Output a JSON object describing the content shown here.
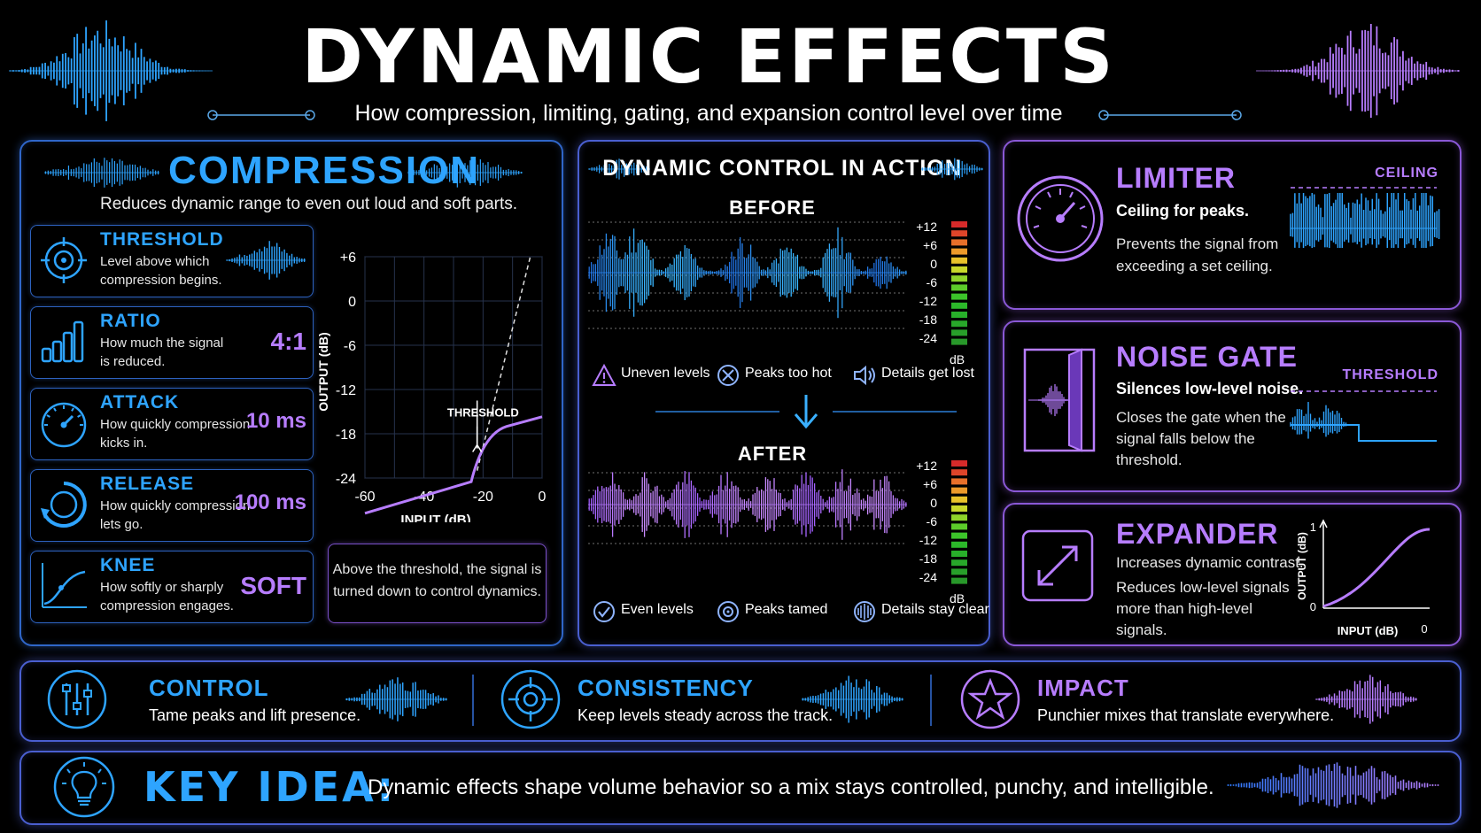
{
  "header": {
    "title": "DYNAMIC EFFECTS",
    "subtitle": "How compression, limiting, gating, and expansion control level over time"
  },
  "compression": {
    "title": "COMPRESSION",
    "description": "Reduces dynamic range to even out loud and soft parts.",
    "params": [
      {
        "name": "THRESHOLD",
        "desc1": "Level above which",
        "desc2": "compression begins.",
        "value": "",
        "icon": "target-icon"
      },
      {
        "name": "RATIO",
        "desc1": "How much the signal",
        "desc2": "is reduced.",
        "value": "4:1",
        "icon": "bars-icon"
      },
      {
        "name": "ATTACK",
        "desc1": "How quickly compression",
        "desc2": "kicks in.",
        "value": "10 ms",
        "icon": "gauge-icon"
      },
      {
        "name": "RELEASE",
        "desc1": "How quickly compression",
        "desc2": "lets go.",
        "value": "100 ms",
        "icon": "release-dial-icon"
      },
      {
        "name": "KNEE",
        "desc1": "How softly or sharply",
        "desc2": "compression engages.",
        "value": "SOFT",
        "icon": "knee-curve-icon"
      }
    ],
    "graph": {
      "y_ticks": [
        "+6",
        "0",
        "-6",
        "-12",
        "-18",
        "-24"
      ],
      "x_ticks": [
        "-60",
        "-40",
        "-20",
        "0"
      ],
      "ylabel": "OUTPUT (dB)",
      "xlabel": "INPUT (dB)",
      "annotation": "THRESHOLD"
    },
    "note_line1": "Above the threshold, the signal is",
    "note_line2": "turned down to control dynamics."
  },
  "action": {
    "title": "DYNAMIC CONTROL IN ACTION",
    "before_label": "BEFORE",
    "after_label": "AFTER",
    "meter_ticks": [
      "+12",
      "+6",
      "0",
      "-6",
      "-12",
      "-18",
      "-24"
    ],
    "meter_unit": "dB",
    "before_notes": [
      "Uneven levels",
      "Peaks too hot",
      "Details get lost"
    ],
    "after_notes": [
      "Even levels",
      "Peaks tamed",
      "Details stay clear"
    ]
  },
  "limiter": {
    "title": "LIMITER",
    "subtitle": "Ceiling for peaks.",
    "desc1": "Prevents the signal from",
    "desc2": "exceeding a set ceiling.",
    "graph_label": "CEILING"
  },
  "gate": {
    "title": "NOISE GATE",
    "subtitle": "Silences low-level noise.",
    "desc1": "Closes the gate when the",
    "desc2": "signal falls below the",
    "desc3": "threshold.",
    "graph_label": "THRESHOLD"
  },
  "expander": {
    "title": "EXPANDER",
    "subtitle": "Increases dynamic contrast.",
    "desc1": "Reduces low-level signals",
    "desc2": "more than high-level",
    "desc3": "signals.",
    "graph": {
      "ylabel": "OUTPUT (dB)",
      "xlabel": "INPUT (dB)",
      "y_top": "1",
      "y_bottom": "0",
      "x_right": "0"
    }
  },
  "benefits": [
    {
      "title": "CONTROL",
      "desc": "Tame peaks and lift presence."
    },
    {
      "title": "CONSISTENCY",
      "desc": "Keep levels steady across the track."
    },
    {
      "title": "IMPACT",
      "desc": "Punchier mixes that translate everywhere."
    }
  ],
  "key_idea": {
    "label": "KEY IDEA:",
    "text": "Dynamic effects shape volume behavior so a mix stays controlled, punchy, and intelligible."
  },
  "colors": {
    "blue": "#2ea4ff",
    "purple": "#b77dff",
    "panel_blue": "#2f66c9",
    "panel_purple": "#8a58d6"
  }
}
